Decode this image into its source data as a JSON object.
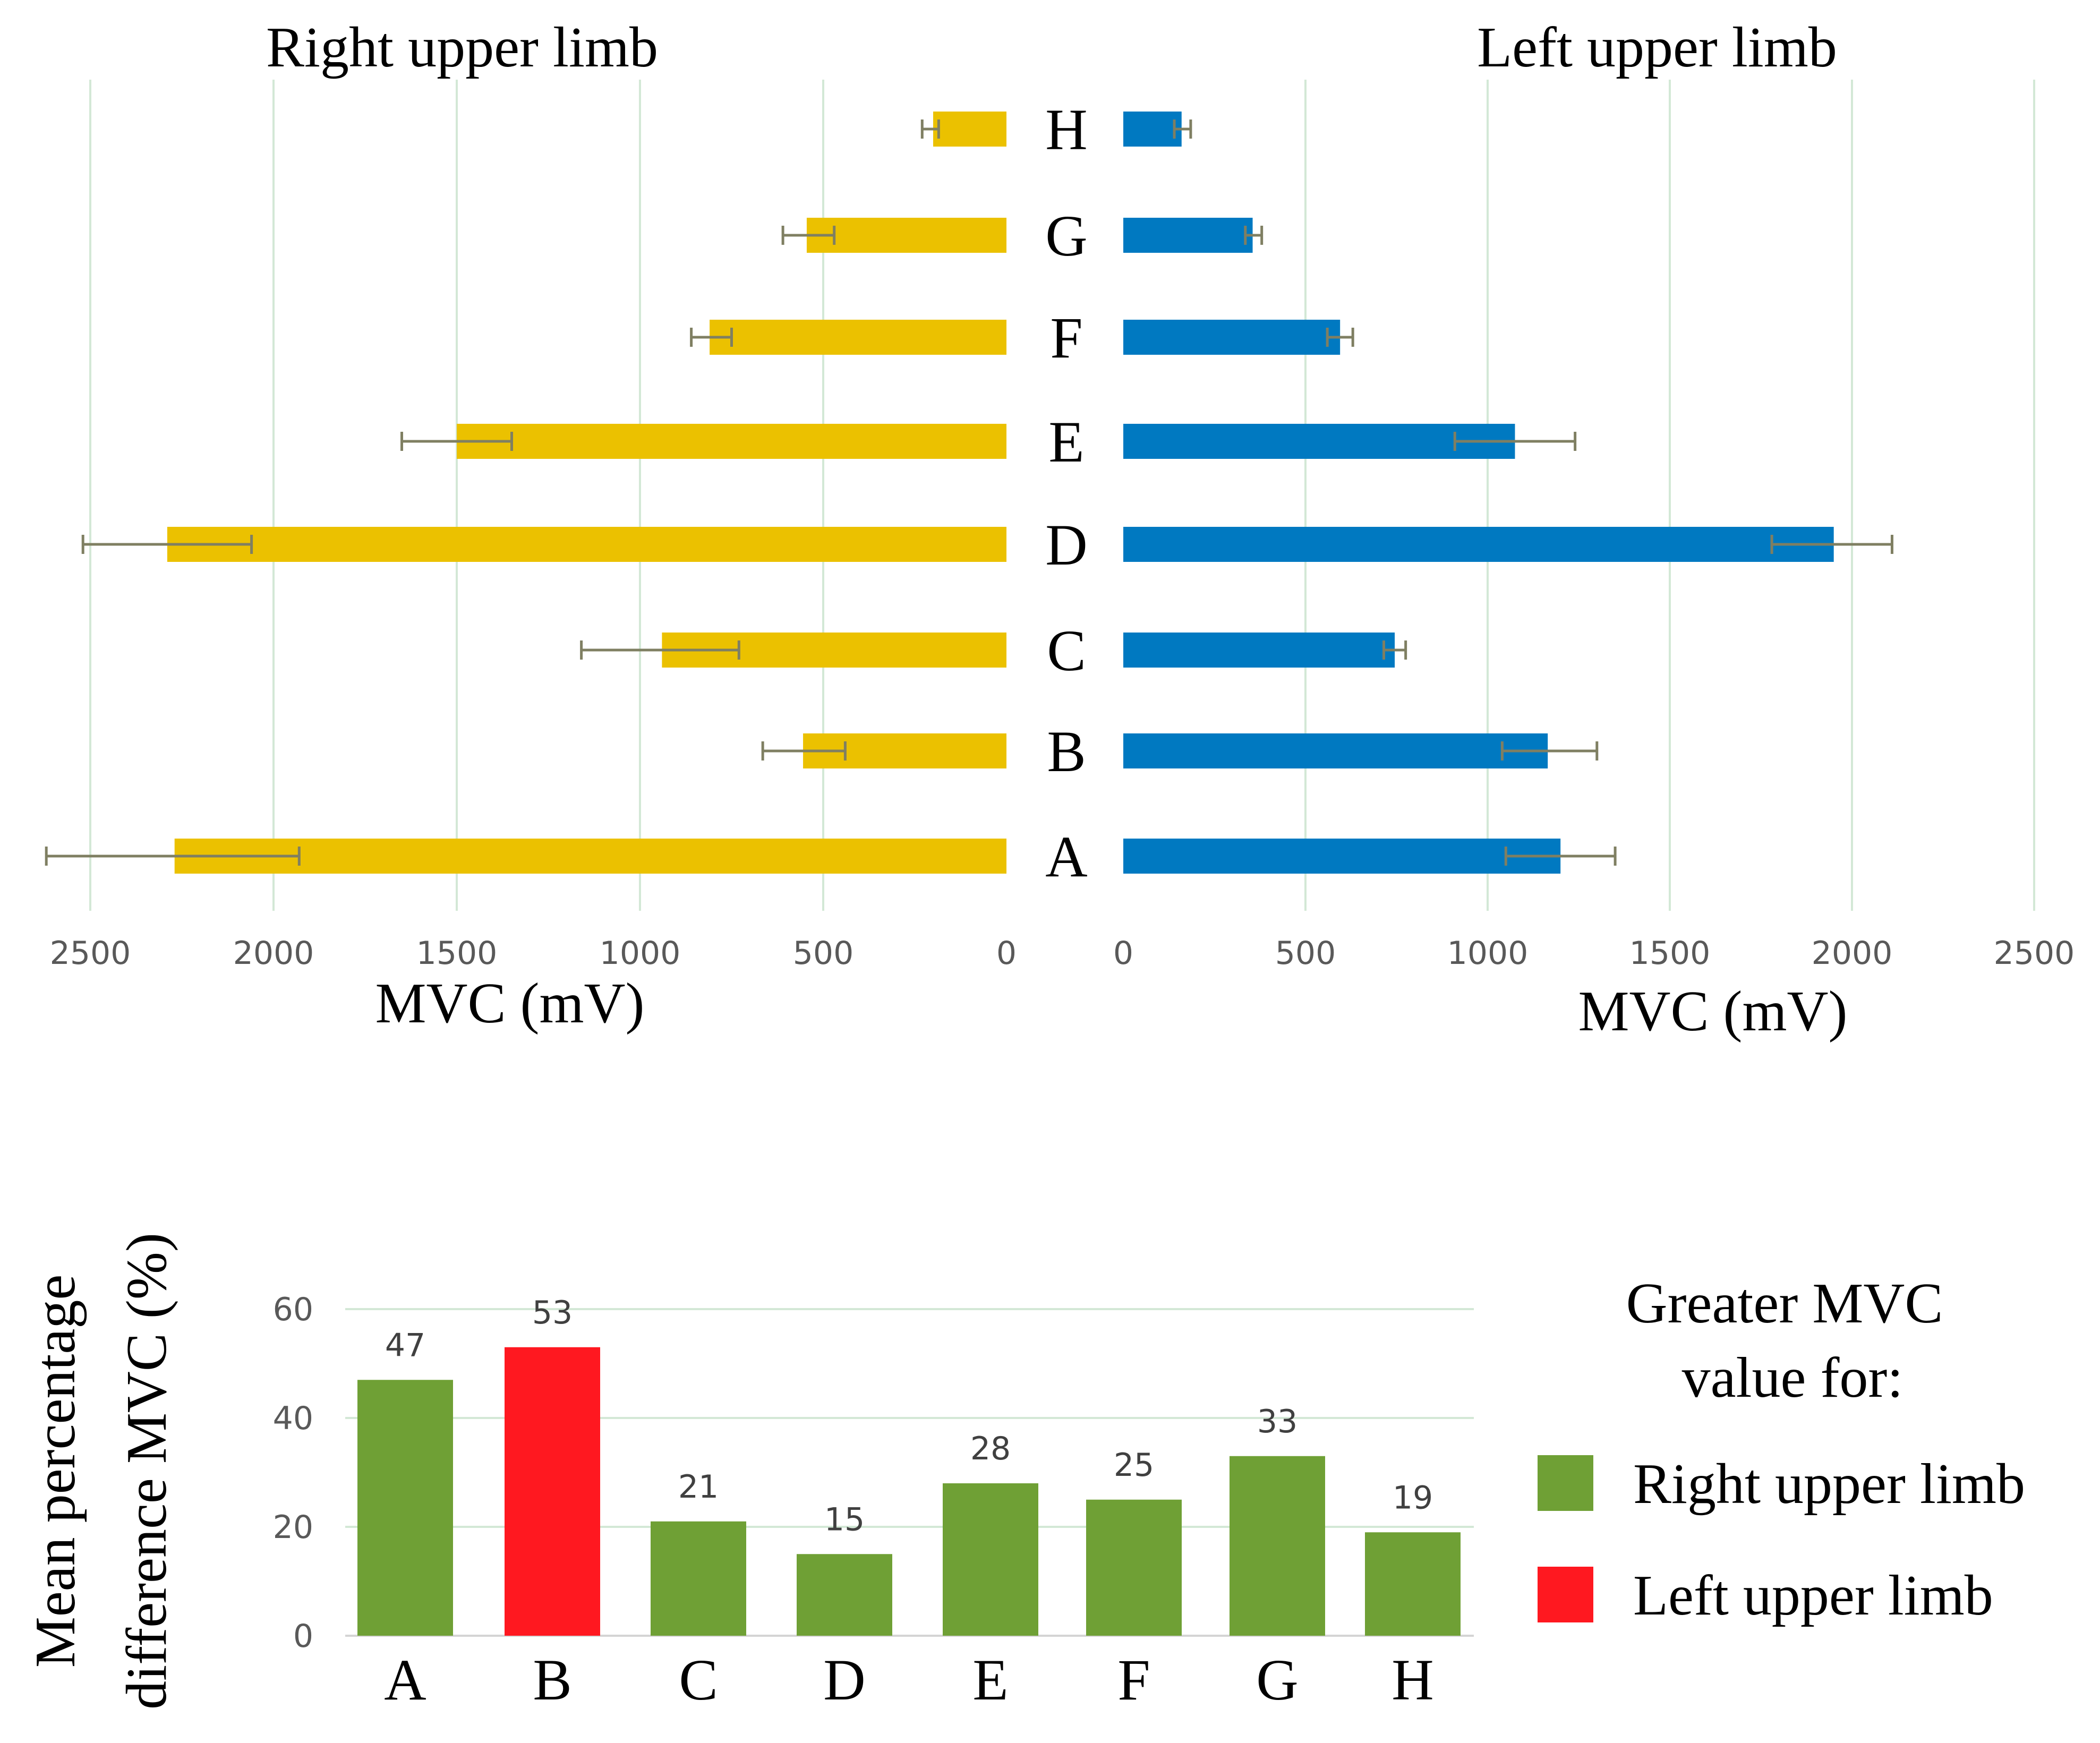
{
  "chart_data": [
    {
      "type": "bar",
      "orientation": "horizontal-mirrored",
      "panel": "upper-right-limb",
      "title": "Right upper limb",
      "xlabel": "MVC (mV)",
      "xlim": [
        2500,
        0
      ],
      "ticks": [
        "2500",
        "2000",
        "1500",
        "1000",
        "500",
        "0"
      ],
      "tick_values": [
        2500,
        2000,
        1500,
        1000,
        500,
        0
      ],
      "categories": [
        "H",
        "G",
        "F",
        "E",
        "D",
        "C",
        "B",
        "A"
      ],
      "values": [
        200,
        545,
        810,
        1500,
        2290,
        940,
        555,
        2270
      ],
      "error_low": [
        230,
        610,
        860,
        1650,
        2520,
        1160,
        665,
        2620
      ],
      "error_high": [
        185,
        470,
        750,
        1350,
        2060,
        730,
        440,
        1930
      ],
      "color": "#EBC100",
      "grid": true
    },
    {
      "type": "bar",
      "orientation": "horizontal",
      "panel": "upper-left-limb",
      "title": "Left upper limb",
      "xlabel": "MVC (mV)",
      "xlim": [
        0,
        2500
      ],
      "ticks": [
        "0",
        "500",
        "1000",
        "1500",
        "2000",
        "2500"
      ],
      "tick_values": [
        0,
        500,
        1000,
        1500,
        2000,
        2500
      ],
      "categories": [
        "H",
        "G",
        "F",
        "E",
        "D",
        "C",
        "B",
        "A"
      ],
      "values": [
        160,
        355,
        595,
        1075,
        1950,
        745,
        1165,
        1200
      ],
      "error_low": [
        140,
        335,
        560,
        910,
        1780,
        715,
        1040,
        1050
      ],
      "error_high": [
        185,
        380,
        630,
        1240,
        2110,
        775,
        1300,
        1350
      ],
      "color": "#0079C1",
      "grid": true
    },
    {
      "type": "bar",
      "panel": "percentage-difference",
      "title": "",
      "ylabel_line1": "Mean   percentage",
      "ylabel_line2": "difference MVC (%)",
      "ylim": [
        0,
        60
      ],
      "ticks": [
        "0",
        "20",
        "40",
        "60"
      ],
      "tick_values": [
        0,
        20,
        40,
        60
      ],
      "categories": [
        "A",
        "B",
        "C",
        "D",
        "E",
        "F",
        "G",
        "H"
      ],
      "values": [
        47,
        53,
        21,
        15,
        28,
        25,
        33,
        19
      ],
      "data_labels": [
        "47",
        "53",
        "21",
        "15",
        "28",
        "25",
        "33",
        "19"
      ],
      "greater_for": [
        "Right",
        "Left",
        "Right",
        "Right",
        "Right",
        "Right",
        "Right",
        "Right"
      ],
      "legend": {
        "title_line1": "Greater MVC",
        "title_line2": "value for:",
        "entries": [
          {
            "label": "Right upper limb",
            "color": "#6FA035"
          },
          {
            "label": "Left upper limb",
            "color": "#FF1820"
          }
        ]
      },
      "grid": true
    }
  ]
}
